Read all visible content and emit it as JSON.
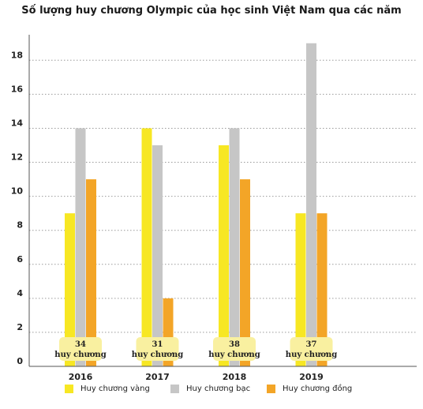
{
  "chart_data": {
    "type": "bar",
    "title": "Số lượng huy chương Olympic của học sinh Việt Nam qua các năm",
    "categories": [
      "2016",
      "2017",
      "2018",
      "2019"
    ],
    "series": [
      {
        "name": "Huy chương vàng",
        "color": "#f7e723",
        "values": [
          9,
          14,
          13,
          9
        ]
      },
      {
        "name": "Huy chương bạc",
        "color": "#c6c6c6",
        "values": [
          14,
          13,
          14,
          19
        ]
      },
      {
        "name": "Huy chương đồng",
        "color": "#f3a527",
        "values": [
          11,
          4,
          11,
          9
        ]
      }
    ],
    "totals": [
      {
        "number": "34",
        "unit": "huy chương"
      },
      {
        "number": "31",
        "unit": "huy chương"
      },
      {
        "number": "38",
        "unit": "huy chương"
      },
      {
        "number": "37",
        "unit": "huy chương"
      }
    ],
    "total_badge_color": "#f9f0a0",
    "yticks": [
      0,
      2,
      4,
      6,
      8,
      10,
      12,
      14,
      16,
      18
    ],
    "ylim": [
      0,
      19.5
    ],
    "grid": true,
    "legend": "bottom",
    "xlabel": "",
    "ylabel": ""
  }
}
